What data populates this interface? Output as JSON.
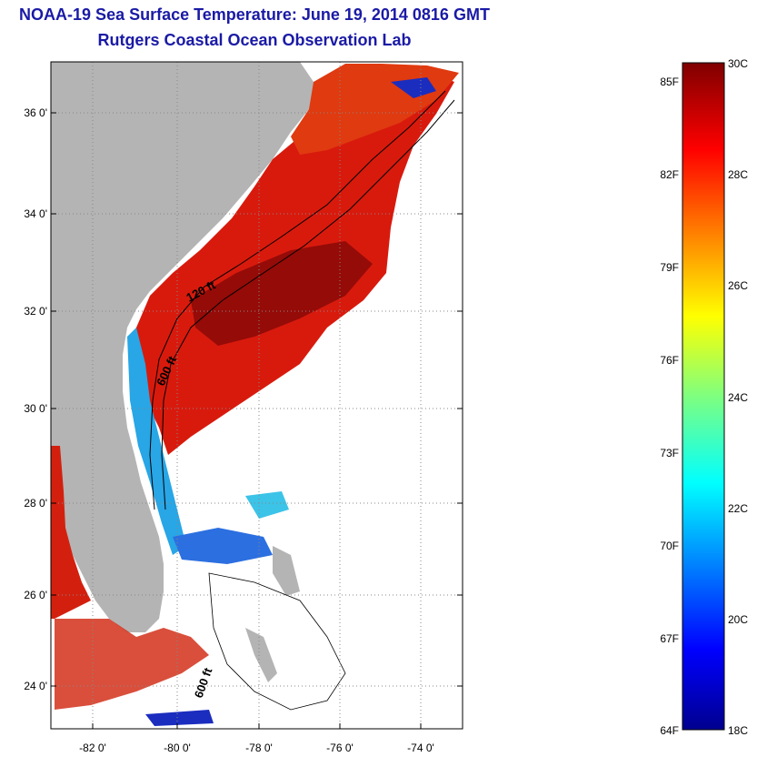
{
  "title": "NOAA-19 Sea Surface Temperature:  June 19, 2014 0816 GMT",
  "subtitle": "Rutgers Coastal Ocean Observation Lab",
  "map": {
    "latitude_labels": [
      "36 0'",
      "34 0'",
      "32 0'",
      "30 0'",
      "28 0'",
      "26 0'",
      "24 0'"
    ],
    "longitude_labels": [
      "-82 0'",
      "-80 0'",
      "-78 0'",
      "-76 0'",
      "-74 0'"
    ],
    "contour_labels": [
      "120 ft",
      "600 ft",
      "600 ft"
    ],
    "lat_range": [
      23.1,
      37.1
    ],
    "lon_range": [
      -83.0,
      -72.6
    ]
  },
  "colorbar": {
    "celsius_labels": [
      "30C",
      "28C",
      "26C",
      "24C",
      "22C",
      "20C",
      "18C"
    ],
    "fahrenheit_labels": [
      "85F",
      "82F",
      "79F",
      "76F",
      "73F",
      "70F",
      "67F",
      "64F"
    ],
    "range_celsius": [
      18,
      30
    ],
    "colormap": "jet",
    "colors": {
      "land": "#b4b4b4",
      "ocean_warm": "#d81a0d",
      "ocean_hot": "#8e0a08",
      "cloud_cold": "#1b2dbf"
    }
  }
}
